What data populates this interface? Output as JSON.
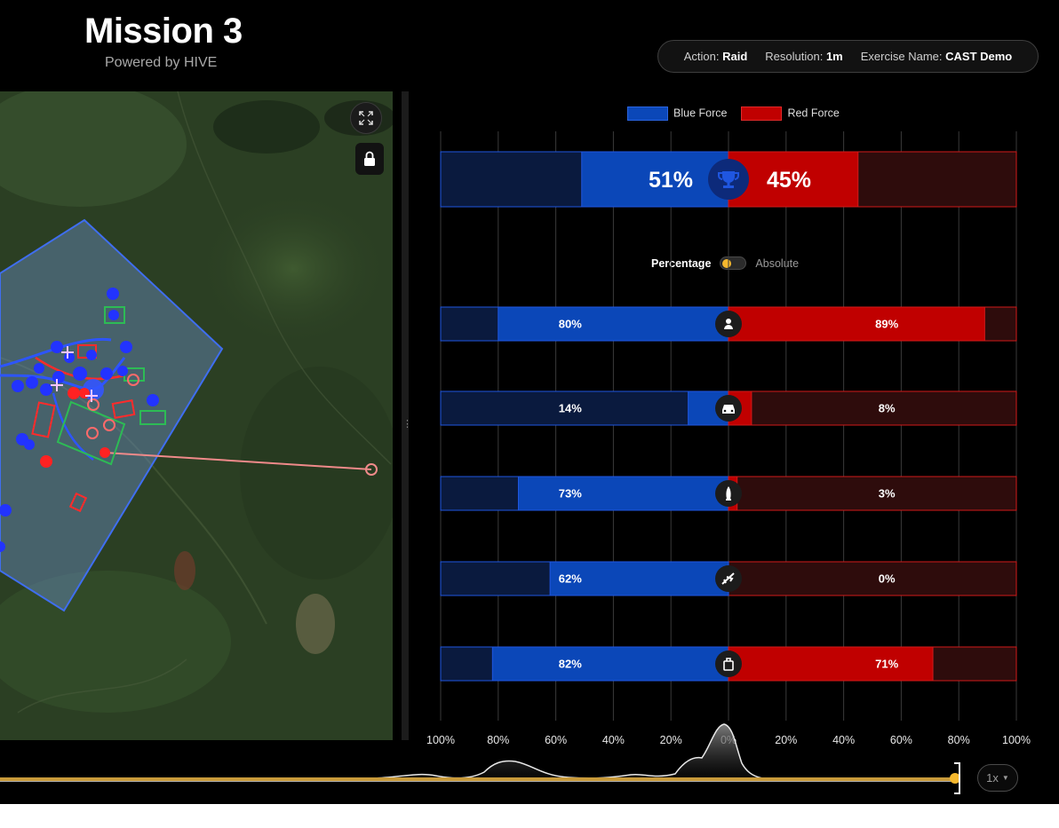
{
  "header": {
    "title": "Mission 3",
    "subtitle": "Powered by HIVE"
  },
  "info": {
    "action_label": "Action:",
    "action_value": "Raid",
    "resolution_label": "Resolution:",
    "resolution_value": "1m",
    "exercise_label": "Exercise Name:",
    "exercise_value": "CAST Demo"
  },
  "map": {
    "expand_icon": "expand-icon",
    "lock_icon": "lock-icon"
  },
  "legend": {
    "blue": "Blue Force",
    "red": "Red Force"
  },
  "toggle": {
    "percentage": "Percentage",
    "absolute": "Absolute",
    "state": "percentage"
  },
  "colors": {
    "blue": "#0b47b8",
    "blue_dark": "#0a1a3e",
    "red": "#c00000",
    "red_dark": "#2e0c0c",
    "accent": "#f5b82e"
  },
  "chart_data": {
    "type": "bar",
    "orientation": "diverging-horizontal",
    "x_ticks": [
      "100%",
      "80%",
      "60%",
      "40%",
      "20%",
      "0%",
      "20%",
      "40%",
      "60%",
      "80%",
      "100%"
    ],
    "xlim": [
      -100,
      100
    ],
    "grid": true,
    "legend_position": "top",
    "overall": {
      "icon": "trophy-icon",
      "blue": 51,
      "red": 45,
      "blue_label": "51%",
      "red_label": "45%"
    },
    "rows": [
      {
        "icon": "person-icon",
        "blue": 80,
        "red": 89,
        "blue_label": "80%",
        "red_label": "89%"
      },
      {
        "icon": "vehicle-icon",
        "blue": 14,
        "red": 8,
        "blue_label": "14%",
        "red_label": "8%"
      },
      {
        "icon": "rocket-icon",
        "blue": 73,
        "red": 3,
        "blue_label": "73%",
        "red_label": "3%"
      },
      {
        "icon": "aircraft-icon",
        "blue": 62,
        "red": 0,
        "blue_label": "62%",
        "red_label": "0%"
      },
      {
        "icon": "supply-bag-icon",
        "blue": 82,
        "red": 71,
        "blue_label": "82%",
        "red_label": "71%"
      }
    ]
  },
  "timeline": {
    "speed_label": "1x",
    "position": 1.0
  }
}
